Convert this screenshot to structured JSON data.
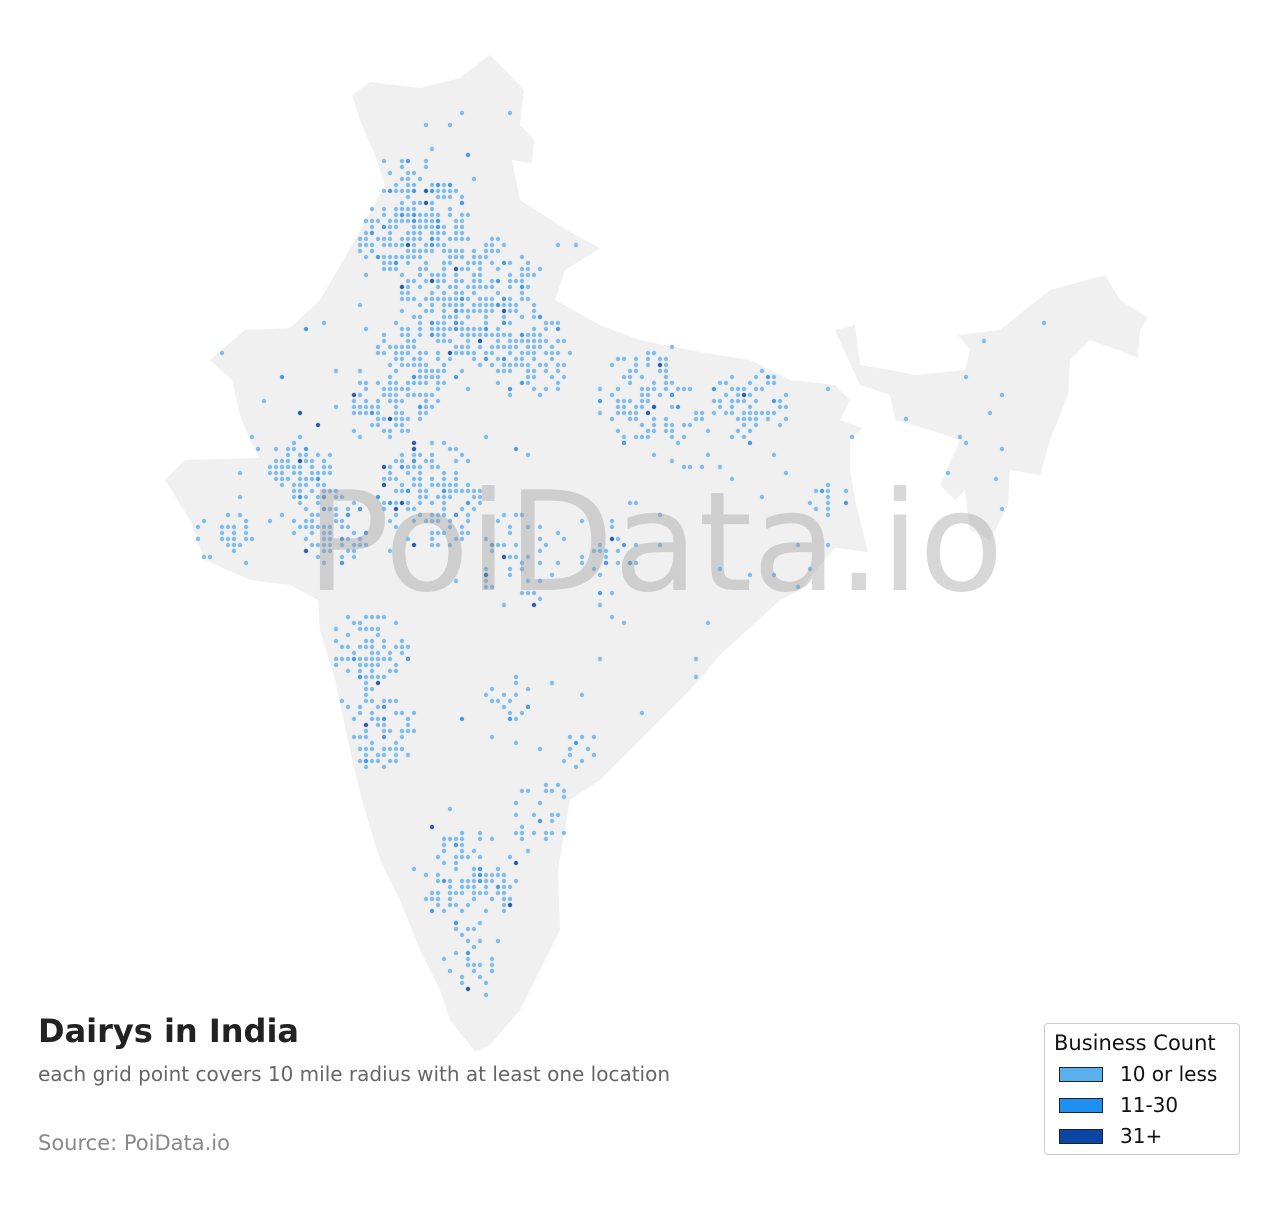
{
  "map": {
    "title": "Dairys in India",
    "subtitle": "each grid point covers 10 mile radius with at least one location",
    "source": "Source: PoiData.io",
    "watermark": "PoiData.io",
    "land_color": "#f0f0f0",
    "categories": [
      {
        "label": "10 or less",
        "color": "#5aafef",
        "dot_color": "#7fbdf0",
        "share": 0.9
      },
      {
        "label": "11-30",
        "color": "#1e90f0",
        "dot_color": "#4a9be2",
        "share": 0.08
      },
      {
        "label": "31+",
        "color": "#0b45a5",
        "dot_color": "#2a5faf",
        "share": 0.02
      }
    ]
  },
  "legend": {
    "title": "Business Count",
    "items": [
      {
        "label": "10 or less",
        "color": "#5aafef"
      },
      {
        "label": "11-30",
        "color": "#1e90f0"
      },
      {
        "label": "31+",
        "color": "#0b45a5"
      }
    ]
  }
}
